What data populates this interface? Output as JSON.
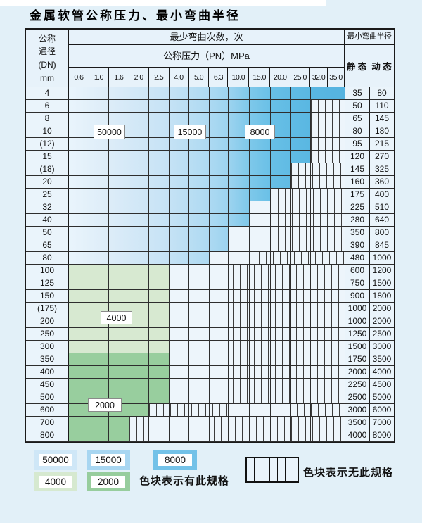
{
  "title": "金属软管公称压力、最小弯曲半径",
  "table": {
    "corner": {
      "l1": "公称",
      "l2": "通径",
      "l3": "(DN)",
      "l4": "mm"
    },
    "bend_header": "最少弯曲次数，次",
    "pressure_header": "公称压力（PN）MPa",
    "radius_header": "最小弯曲半径",
    "static_header": "静 态",
    "dynamic_header": "动 态",
    "pressures": [
      "0.6",
      "1.0",
      "1.6",
      "2.0",
      "2.5",
      "4.0",
      "5.0",
      "6.3",
      "10.0",
      "15.0",
      "20.0",
      "25.0",
      "32.0",
      "35.0"
    ],
    "rows": [
      {
        "dn": "4",
        "zone": "blue",
        "spec_cols": 14,
        "max_pn": "35.0",
        "static": "35",
        "dynamic": "80"
      },
      {
        "dn": "6",
        "zone": "blue",
        "spec_cols": 12,
        "max_pn": "25.0",
        "static": "50",
        "dynamic": "110"
      },
      {
        "dn": "8",
        "zone": "blue",
        "spec_cols": 12,
        "max_pn": "25.0",
        "static": "65",
        "dynamic": "145"
      },
      {
        "dn": "10",
        "zone": "blue",
        "spec_cols": 12,
        "max_pn": "25.0",
        "static": "80",
        "dynamic": "180"
      },
      {
        "dn": "(12)",
        "zone": "blue",
        "spec_cols": 12,
        "max_pn": "25.0",
        "static": "95",
        "dynamic": "215"
      },
      {
        "dn": "15",
        "zone": "blue",
        "spec_cols": 12,
        "max_pn": "25.0",
        "static": "120",
        "dynamic": "270"
      },
      {
        "dn": "(18)",
        "zone": "blue",
        "spec_cols": 11,
        "max_pn": "20.0",
        "static": "145",
        "dynamic": "325"
      },
      {
        "dn": "20",
        "zone": "blue",
        "spec_cols": 11,
        "max_pn": "20.0",
        "static": "160",
        "dynamic": "360"
      },
      {
        "dn": "25",
        "zone": "blue",
        "spec_cols": 10,
        "max_pn": "15.0",
        "static": "175",
        "dynamic": "400"
      },
      {
        "dn": "32",
        "zone": "blue",
        "spec_cols": 9,
        "max_pn": "10.0",
        "static": "225",
        "dynamic": "510"
      },
      {
        "dn": "40",
        "zone": "blue",
        "spec_cols": 9,
        "max_pn": "10.0",
        "static": "280",
        "dynamic": "640"
      },
      {
        "dn": "50",
        "zone": "blue",
        "spec_cols": 8,
        "max_pn": "6.3",
        "static": "350",
        "dynamic": "800"
      },
      {
        "dn": "65",
        "zone": "blue",
        "spec_cols": 8,
        "max_pn": "6.3",
        "static": "390",
        "dynamic": "845"
      },
      {
        "dn": "80",
        "zone": "blue",
        "spec_cols": 7,
        "max_pn": "5.0",
        "static": "480",
        "dynamic": "1000"
      },
      {
        "dn": "100",
        "zone": "green-4000",
        "spec_cols": 5,
        "max_pn": "2.5",
        "static": "600",
        "dynamic": "1200"
      },
      {
        "dn": "125",
        "zone": "green-4000",
        "spec_cols": 5,
        "max_pn": "2.5",
        "static": "750",
        "dynamic": "1500"
      },
      {
        "dn": "150",
        "zone": "green-4000",
        "spec_cols": 5,
        "max_pn": "2.5",
        "static": "900",
        "dynamic": "1800"
      },
      {
        "dn": "(175)",
        "zone": "green-4000",
        "spec_cols": 5,
        "max_pn": "2.5",
        "static": "1000",
        "dynamic": "2000"
      },
      {
        "dn": "200",
        "zone": "green-4000",
        "spec_cols": 5,
        "max_pn": "2.5",
        "static": "1000",
        "dynamic": "2000"
      },
      {
        "dn": "250",
        "zone": "green-4000",
        "spec_cols": 5,
        "max_pn": "2.5",
        "static": "1250",
        "dynamic": "2500"
      },
      {
        "dn": "300",
        "zone": "green-4000",
        "spec_cols": 5,
        "max_pn": "2.5",
        "static": "1500",
        "dynamic": "3000"
      },
      {
        "dn": "350",
        "zone": "green-2000",
        "spec_cols": 5,
        "max_pn": "2.5",
        "static": "1750",
        "dynamic": "3500"
      },
      {
        "dn": "400",
        "zone": "green-2000",
        "spec_cols": 5,
        "max_pn": "2.5",
        "static": "2000",
        "dynamic": "4000"
      },
      {
        "dn": "450",
        "zone": "green-2000",
        "spec_cols": 5,
        "max_pn": "2.5",
        "static": "2250",
        "dynamic": "4500"
      },
      {
        "dn": "500",
        "zone": "green-2000",
        "spec_cols": 5,
        "max_pn": "2.5",
        "static": "2500",
        "dynamic": "5000"
      },
      {
        "dn": "600",
        "zone": "green-2000",
        "spec_cols": 4,
        "max_pn": "2.0",
        "static": "3000",
        "dynamic": "6000"
      },
      {
        "dn": "700",
        "zone": "green-2000",
        "spec_cols": 3,
        "max_pn": "1.6",
        "static": "3500",
        "dynamic": "7000"
      },
      {
        "dn": "800",
        "zone": "green-2000",
        "spec_cols": 3,
        "max_pn": "1.6",
        "static": "4000",
        "dynamic": "8000"
      }
    ],
    "zone_labels": [
      {
        "id": "z50000",
        "text": "50000"
      },
      {
        "id": "z15000",
        "text": "15000"
      },
      {
        "id": "z8000",
        "text": "8000"
      },
      {
        "id": "z4000",
        "text": "4000"
      },
      {
        "id": "z2000",
        "text": "2000"
      }
    ]
  },
  "legend": {
    "swatches": [
      {
        "label": "50000",
        "color": "#cfe7f7"
      },
      {
        "label": "15000",
        "color": "#a8d6f1"
      },
      {
        "label": "8000",
        "color": "#74c2e8"
      },
      {
        "label": "4000",
        "color": "#d6e9d0"
      },
      {
        "label": "2000",
        "color": "#97cd9d"
      }
    ],
    "has_spec_note": "色块表示有此规格",
    "no_spec_note": "色块表示无此规格"
  },
  "colors": {
    "page_bg": "#e2f0f8",
    "blue_50000": "#cfe7f7",
    "blue_15000": "#a8d6f1",
    "blue_8000": "#74c2e8",
    "green_4000": "#d6e9d0",
    "green_2000": "#97cd9d",
    "no_spec_fill": "#e9f3fb"
  }
}
